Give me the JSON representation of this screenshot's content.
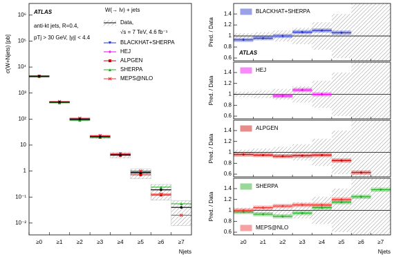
{
  "chart_data": [
    {
      "type": "log-scatter",
      "ylabel": "σ(W+Njets) [pb]",
      "xlabel": "Njets",
      "experiment": "ATLAS",
      "note_lines": [
        "anti-kt jets, R=0.4,",
        "pTj > 30 GeV, |yj| < 4.4"
      ],
      "legend_title": "W(→ lν) + jets",
      "data_label_lines": [
        "Data,",
        "√s = 7 TeV, 4.6 fb⁻¹"
      ],
      "categories": [
        "≥0",
        "≥1",
        "≥2",
        "≥3",
        "≥4",
        "≥5",
        "≥6",
        "≥7"
      ],
      "ylim": [
        0.0035,
        2800000
      ],
      "log_y": true,
      "yticks": [
        {
          "value": 0.01,
          "label": "10⁻²"
        },
        {
          "value": 0.1,
          "label": "10⁻¹"
        },
        1,
        10,
        {
          "value": 100,
          "label": "10²"
        },
        {
          "value": 1000,
          "label": "10³"
        },
        {
          "value": 10000,
          "label": "10⁴"
        },
        {
          "value": 100000,
          "label": "10⁵"
        },
        {
          "value": 1000000,
          "label": "10⁶"
        }
      ],
      "data": {
        "values": [
          4500,
          450,
          100,
          21,
          4.2,
          0.85,
          0.19,
          0.04
        ],
        "rel_uncertainty": [
          0.05,
          0.07,
          0.1,
          0.15,
          0.25,
          0.4,
          0.6,
          0.8
        ],
        "color": "#000000"
      },
      "series": [
        {
          "name": "BLACKHAT+SHERPA",
          "color": "#2233cc",
          "marker": "triangle",
          "values": [
            4185,
            432,
            100,
            22.5,
            4.6,
            0.9,
            null,
            null
          ]
        },
        {
          "name": "HEJ",
          "color": "#ee00ee",
          "marker": "plus",
          "values": [
            null,
            null,
            97,
            22.7,
            4.2,
            null,
            null,
            null
          ]
        },
        {
          "name": "ALPGEN",
          "color": "#cc0000",
          "marker": "square",
          "values": [
            4320,
            428,
            93,
            19.7,
            4.0,
            0.72,
            0.12,
            null
          ]
        },
        {
          "name": "SHERPA",
          "color": "#22aa22",
          "marker": "triangle-up",
          "values": [
            4365,
            419,
            89,
            20,
            4.4,
            0.98,
            0.24,
            0.055
          ]
        },
        {
          "name": "MEPS@NLO",
          "color": "#ee3333",
          "marker": "cross",
          "values": [
            4500,
            473,
            108,
            23,
            4.6,
            1.0,
            0.13,
            0.02
          ]
        }
      ]
    },
    {
      "type": "ratio-panels",
      "ylabel": "Pred. / Data",
      "xlabel": "Njets",
      "experiment": "ATLAS",
      "categories": [
        "≥0",
        "≥1",
        "≥2",
        "≥3",
        "≥4",
        "≥5",
        "≥6",
        "≥7"
      ],
      "ylim": [
        0.55,
        1.59
      ],
      "yticks": [
        0.6,
        0.8,
        1,
        1.2,
        1.4
      ],
      "data_rel_uncertainty": [
        0.05,
        0.07,
        0.1,
        0.15,
        0.25,
        0.4,
        0.6,
        0.8
      ],
      "panels": [
        {
          "series": [
            {
              "name": "BLACKHAT+SHERPA",
              "color": "#2233cc",
              "values": [
                0.93,
                0.96,
                1.0,
                1.07,
                1.1,
                1.06,
                null,
                null
              ]
            }
          ]
        },
        {
          "series": [
            {
              "name": "HEJ",
              "color": "#ee00ee",
              "values": [
                null,
                null,
                0.97,
                1.08,
                1.0,
                null,
                null,
                null
              ]
            }
          ]
        },
        {
          "series": [
            {
              "name": "ALPGEN",
              "color": "#cc0000",
              "values": [
                0.96,
                0.95,
                0.93,
                0.94,
                0.95,
                0.85,
                0.63,
                null
              ]
            }
          ]
        },
        {
          "series": [
            {
              "name": "SHERPA",
              "color": "#22aa22",
              "values": [
                0.97,
                0.93,
                0.89,
                0.95,
                1.05,
                1.15,
                1.25,
                1.38
              ]
            },
            {
              "name": "MEPS@NLO",
              "color": "#ee3333",
              "values": [
                1.0,
                1.05,
                1.08,
                1.1,
                1.1,
                1.2,
                null,
                null
              ]
            }
          ]
        }
      ]
    }
  ]
}
